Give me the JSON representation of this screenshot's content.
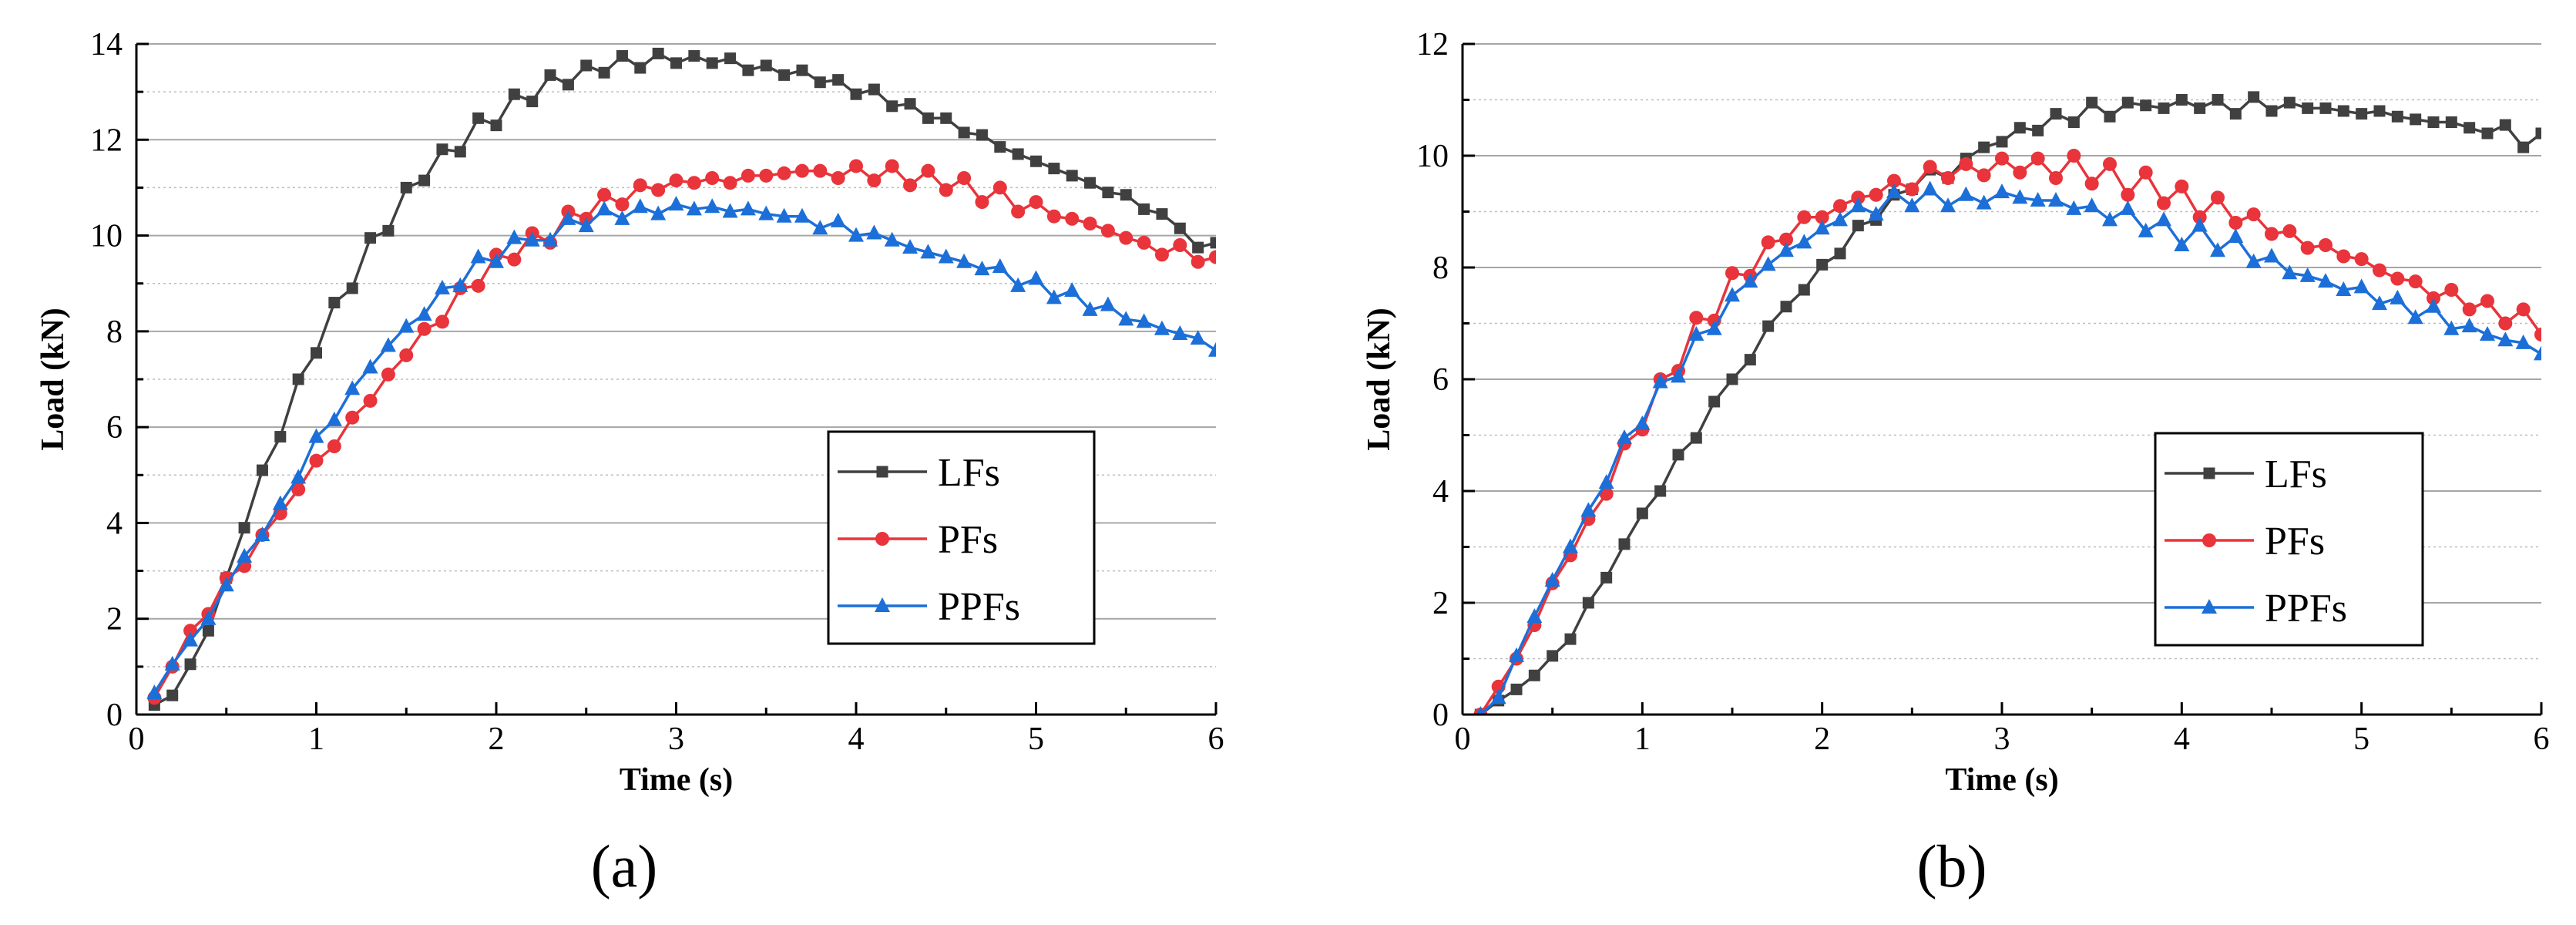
{
  "chart_data": [
    {
      "type": "line",
      "panel": "a",
      "sublabel": "(a)",
      "xlabel": "Time (s)",
      "ylabel": "Load (kN)",
      "xlim": [
        0,
        6
      ],
      "ylim": [
        0,
        14
      ],
      "xticks": [
        0,
        1,
        2,
        3,
        4,
        5,
        6
      ],
      "yticks": [
        0,
        2,
        4,
        6,
        8,
        10,
        12,
        14
      ],
      "grid": true,
      "legend_position": "bottom-right",
      "series": [
        {
          "name": "LFs",
          "color": "#404040",
          "marker": "square",
          "x": [
            0.1,
            0.2,
            0.3,
            0.4,
            0.5,
            0.6,
            0.7,
            0.8,
            0.9,
            1.0,
            1.1,
            1.2,
            1.3,
            1.4,
            1.5,
            1.6,
            1.7,
            1.8,
            1.9,
            2.0,
            2.1,
            2.2,
            2.3,
            2.4,
            2.5,
            2.6,
            2.7,
            2.8,
            2.9,
            3.0,
            3.1,
            3.2,
            3.3,
            3.4,
            3.5,
            3.6,
            3.7,
            3.8,
            3.9,
            4.0,
            4.1,
            4.2,
            4.3,
            4.4,
            4.5,
            4.6,
            4.7,
            4.8,
            4.9,
            5.0,
            5.1,
            5.2,
            5.3,
            5.4,
            5.5,
            5.6,
            5.7,
            5.8,
            5.9,
            6.0
          ],
          "y": [
            0.2,
            0.4,
            1.05,
            1.75,
            2.85,
            3.9,
            5.1,
            5.8,
            7.0,
            7.55,
            8.6,
            8.9,
            9.95,
            10.1,
            11.0,
            11.15,
            11.8,
            11.75,
            12.45,
            12.3,
            12.95,
            12.8,
            13.35,
            13.15,
            13.55,
            13.4,
            13.75,
            13.5,
            13.8,
            13.6,
            13.75,
            13.6,
            13.7,
            13.45,
            13.55,
            13.35,
            13.45,
            13.2,
            13.25,
            12.95,
            13.05,
            12.7,
            12.75,
            12.45,
            12.45,
            12.15,
            12.1,
            11.85,
            11.7,
            11.55,
            11.4,
            11.25,
            11.1,
            10.9,
            10.85,
            10.55,
            10.45,
            10.15,
            9.75,
            9.85
          ]
        },
        {
          "name": "PFs",
          "color": "#e8343a",
          "marker": "circle",
          "x": [
            0.1,
            0.2,
            0.3,
            0.4,
            0.5,
            0.6,
            0.7,
            0.8,
            0.9,
            1.0,
            1.1,
            1.2,
            1.3,
            1.4,
            1.5,
            1.6,
            1.7,
            1.8,
            1.9,
            2.0,
            2.1,
            2.2,
            2.3,
            2.4,
            2.5,
            2.6,
            2.7,
            2.8,
            2.9,
            3.0,
            3.1,
            3.2,
            3.3,
            3.4,
            3.5,
            3.6,
            3.7,
            3.8,
            3.9,
            4.0,
            4.1,
            4.2,
            4.3,
            4.4,
            4.5,
            4.6,
            4.7,
            4.8,
            4.9,
            5.0,
            5.1,
            5.2,
            5.3,
            5.4,
            5.5,
            5.6,
            5.7,
            5.8,
            5.9,
            6.0
          ],
          "y": [
            0.35,
            1.0,
            1.75,
            2.1,
            2.85,
            3.1,
            3.75,
            4.2,
            4.7,
            5.3,
            5.6,
            6.2,
            6.55,
            7.1,
            7.5,
            8.05,
            8.2,
            8.9,
            8.95,
            9.6,
            9.5,
            10.05,
            9.85,
            10.5,
            10.35,
            10.85,
            10.65,
            11.05,
            10.95,
            11.15,
            11.1,
            11.2,
            11.1,
            11.25,
            11.25,
            11.3,
            11.35,
            11.35,
            11.2,
            11.45,
            11.15,
            11.45,
            11.05,
            11.35,
            10.95,
            11.2,
            10.7,
            11.0,
            10.5,
            10.7,
            10.4,
            10.35,
            10.25,
            10.1,
            9.95,
            9.85,
            9.6,
            9.8,
            9.45,
            9.55
          ]
        },
        {
          "name": "PPFs",
          "color": "#1c6fd8",
          "marker": "triangle",
          "x": [
            0.1,
            0.2,
            0.3,
            0.4,
            0.5,
            0.6,
            0.7,
            0.8,
            0.9,
            1.0,
            1.1,
            1.2,
            1.3,
            1.4,
            1.5,
            1.6,
            1.7,
            1.8,
            1.9,
            2.0,
            2.1,
            2.2,
            2.3,
            2.4,
            2.5,
            2.6,
            2.7,
            2.8,
            2.9,
            3.0,
            3.1,
            3.2,
            3.3,
            3.4,
            3.5,
            3.6,
            3.7,
            3.8,
            3.9,
            4.0,
            4.1,
            4.2,
            4.3,
            4.4,
            4.5,
            4.6,
            4.7,
            4.8,
            4.9,
            5.0,
            5.1,
            5.2,
            5.3,
            5.4,
            5.5,
            5.6,
            5.7,
            5.8,
            5.9,
            6.0
          ],
          "y": [
            0.45,
            1.05,
            1.55,
            2.0,
            2.7,
            3.3,
            3.75,
            4.4,
            4.95,
            5.8,
            6.15,
            6.8,
            7.25,
            7.7,
            8.1,
            8.35,
            8.9,
            8.95,
            9.55,
            9.45,
            9.95,
            9.9,
            9.9,
            10.35,
            10.2,
            10.55,
            10.35,
            10.6,
            10.45,
            10.65,
            10.55,
            10.6,
            10.5,
            10.55,
            10.45,
            10.4,
            10.4,
            10.15,
            10.3,
            10.0,
            10.05,
            9.9,
            9.75,
            9.65,
            9.55,
            9.45,
            9.3,
            9.35,
            8.95,
            9.1,
            8.7,
            8.85,
            8.45,
            8.55,
            8.25,
            8.2,
            8.05,
            7.95,
            7.85,
            7.6
          ]
        }
      ]
    },
    {
      "type": "line",
      "panel": "b",
      "sublabel": "(b)",
      "xlabel": "Time (s)",
      "ylabel": "Load (kN)",
      "xlim": [
        0,
        6
      ],
      "ylim": [
        0,
        12
      ],
      "xticks": [
        0,
        1,
        2,
        3,
        4,
        5,
        6
      ],
      "yticks": [
        0,
        2,
        4,
        6,
        8,
        10,
        12
      ],
      "grid": true,
      "legend_position": "bottom-right",
      "series": [
        {
          "name": "LFs",
          "color": "#404040",
          "marker": "square",
          "x": [
            0.1,
            0.2,
            0.3,
            0.4,
            0.5,
            0.6,
            0.7,
            0.8,
            0.9,
            1.0,
            1.1,
            1.2,
            1.3,
            1.4,
            1.5,
            1.6,
            1.7,
            1.8,
            1.9,
            2.0,
            2.1,
            2.2,
            2.3,
            2.4,
            2.5,
            2.6,
            2.7,
            2.8,
            2.9,
            3.0,
            3.1,
            3.2,
            3.3,
            3.4,
            3.5,
            3.6,
            3.7,
            3.8,
            3.9,
            4.0,
            4.1,
            4.2,
            4.3,
            4.4,
            4.5,
            4.6,
            4.7,
            4.8,
            4.9,
            5.0,
            5.1,
            5.2,
            5.3,
            5.4,
            5.5,
            5.6,
            5.7,
            5.8,
            5.9,
            6.0
          ],
          "y": [
            0.0,
            0.25,
            0.45,
            0.7,
            1.05,
            1.35,
            2.0,
            2.45,
            3.05,
            3.6,
            4.0,
            4.65,
            4.95,
            5.6,
            6.0,
            6.35,
            6.95,
            7.3,
            7.6,
            8.05,
            8.25,
            8.75,
            8.85,
            9.3,
            9.4,
            9.75,
            9.6,
            9.95,
            10.15,
            10.25,
            10.5,
            10.45,
            10.75,
            10.6,
            10.95,
            10.7,
            10.95,
            10.9,
            10.85,
            11.0,
            10.85,
            11.0,
            10.75,
            11.05,
            10.8,
            10.95,
            10.85,
            10.85,
            10.8,
            10.75,
            10.8,
            10.7,
            10.65,
            10.6,
            10.6,
            10.5,
            10.4,
            10.55,
            10.15,
            10.4
          ]
        },
        {
          "name": "PFs",
          "color": "#e8343a",
          "marker": "circle",
          "x": [
            0.1,
            0.2,
            0.3,
            0.4,
            0.5,
            0.6,
            0.7,
            0.8,
            0.9,
            1.0,
            1.1,
            1.2,
            1.3,
            1.4,
            1.5,
            1.6,
            1.7,
            1.8,
            1.9,
            2.0,
            2.1,
            2.2,
            2.3,
            2.4,
            2.5,
            2.6,
            2.7,
            2.8,
            2.9,
            3.0,
            3.1,
            3.2,
            3.3,
            3.4,
            3.5,
            3.6,
            3.7,
            3.8,
            3.9,
            4.0,
            4.1,
            4.2,
            4.3,
            4.4,
            4.5,
            4.6,
            4.7,
            4.8,
            4.9,
            5.0,
            5.1,
            5.2,
            5.3,
            5.4,
            5.5,
            5.6,
            5.7,
            5.8,
            5.9,
            6.0
          ],
          "y": [
            0.0,
            0.5,
            1.0,
            1.6,
            2.35,
            2.85,
            3.5,
            3.95,
            4.85,
            5.1,
            6.0,
            6.15,
            7.1,
            7.05,
            7.9,
            7.85,
            8.45,
            8.5,
            8.9,
            8.9,
            9.1,
            9.25,
            9.3,
            9.55,
            9.4,
            9.8,
            9.6,
            9.85,
            9.65,
            9.95,
            9.7,
            9.95,
            9.6,
            10.0,
            9.5,
            9.85,
            9.3,
            9.7,
            9.15,
            9.45,
            8.9,
            9.25,
            8.8,
            8.95,
            8.6,
            8.65,
            8.35,
            8.4,
            8.2,
            8.15,
            7.95,
            7.8,
            7.75,
            7.45,
            7.6,
            7.25,
            7.4,
            7.0,
            7.25,
            6.8
          ]
        },
        {
          "name": "PPFs",
          "color": "#1c6fd8",
          "marker": "triangle",
          "x": [
            0.1,
            0.2,
            0.3,
            0.4,
            0.5,
            0.6,
            0.7,
            0.8,
            0.9,
            1.0,
            1.1,
            1.2,
            1.3,
            1.4,
            1.5,
            1.6,
            1.7,
            1.8,
            1.9,
            2.0,
            2.1,
            2.2,
            2.3,
            2.4,
            2.5,
            2.6,
            2.7,
            2.8,
            2.9,
            3.0,
            3.1,
            3.2,
            3.3,
            3.4,
            3.5,
            3.6,
            3.7,
            3.8,
            3.9,
            4.0,
            4.1,
            4.2,
            4.3,
            4.4,
            4.5,
            4.6,
            4.7,
            4.8,
            4.9,
            5.0,
            5.1,
            5.2,
            5.3,
            5.4,
            5.5,
            5.6,
            5.7,
            5.8,
            5.9,
            6.0
          ],
          "y": [
            0.0,
            0.3,
            1.05,
            1.75,
            2.4,
            3.0,
            3.65,
            4.15,
            4.95,
            5.2,
            5.95,
            6.05,
            6.8,
            6.9,
            7.5,
            7.75,
            8.05,
            8.3,
            8.45,
            8.7,
            8.85,
            9.1,
            8.95,
            9.35,
            9.1,
            9.4,
            9.1,
            9.3,
            9.15,
            9.35,
            9.25,
            9.2,
            9.2,
            9.05,
            9.1,
            8.85,
            9.05,
            8.65,
            8.85,
            8.4,
            8.75,
            8.3,
            8.55,
            8.1,
            8.2,
            7.9,
            7.85,
            7.75,
            7.6,
            7.65,
            7.35,
            7.45,
            7.1,
            7.3,
            6.9,
            6.95,
            6.8,
            6.7,
            6.65,
            6.45
          ]
        }
      ]
    }
  ]
}
